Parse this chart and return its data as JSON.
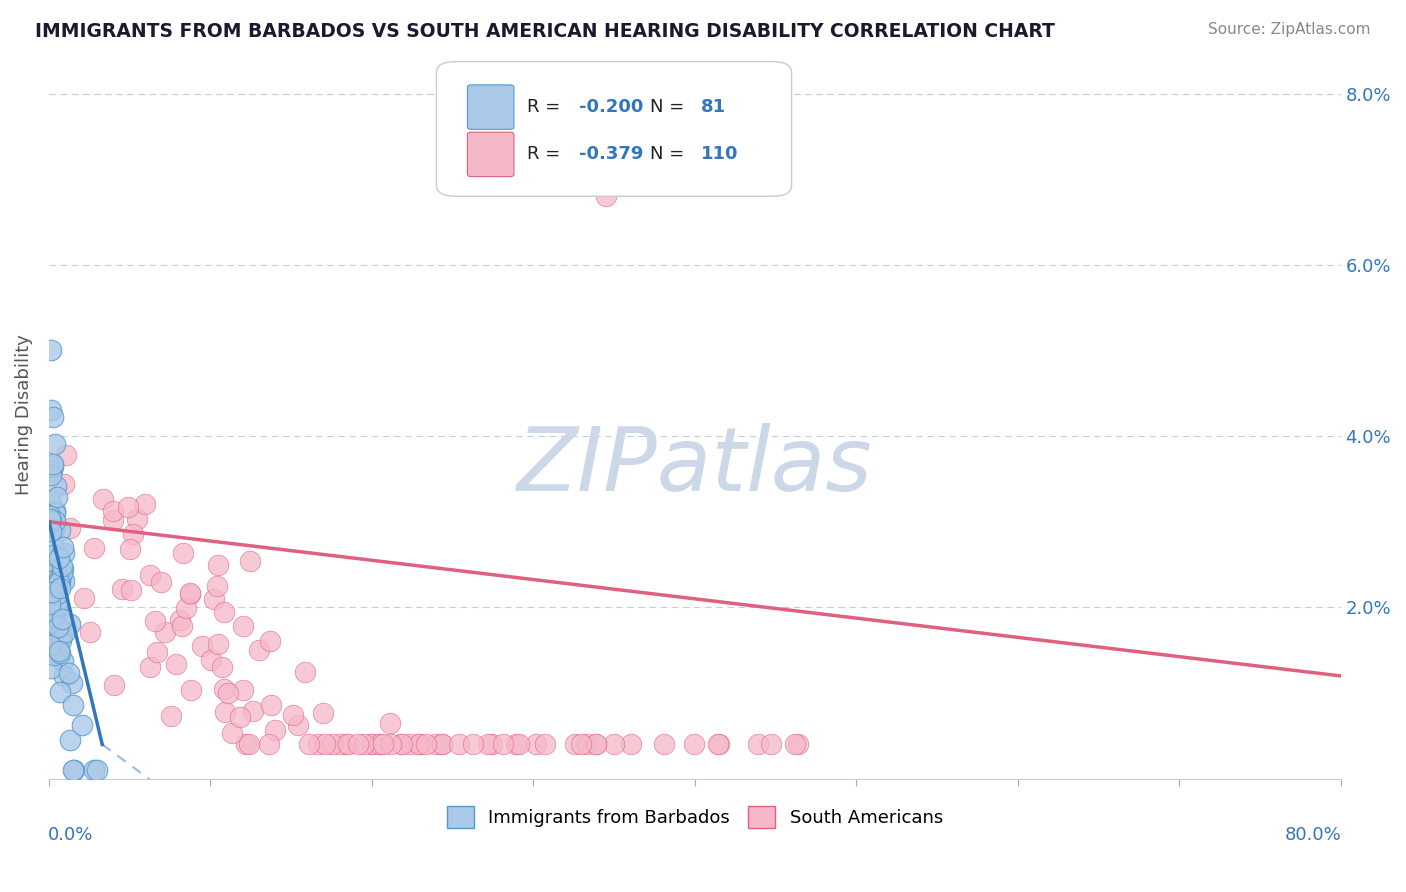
{
  "title": "IMMIGRANTS FROM BARBADOS VS SOUTH AMERICAN HEARING DISABILITY CORRELATION CHART",
  "source": "Source: ZipAtlas.com",
  "ylabel": "Hearing Disability",
  "xmin": 0.0,
  "xmax": 0.8,
  "ymin": 0.0,
  "ymax": 0.085,
  "yticks": [
    0.0,
    0.02,
    0.04,
    0.06,
    0.08
  ],
  "ytick_labels": [
    "",
    "2.0%",
    "4.0%",
    "6.0%",
    "8.0%"
  ],
  "series1": {
    "name": "Immigrants from Barbados",
    "R": -0.2,
    "N": 81,
    "scatter_color": "#aac8e8",
    "edge_color": "#5599cc",
    "line_color": "#3377bb"
  },
  "series2": {
    "name": "South Americans",
    "R": -0.379,
    "N": 110,
    "scatter_color": "#f5b8c8",
    "edge_color": "#e06080",
    "line_color": "#e06080"
  },
  "watermark": "ZIPatlas",
  "watermark_color": "#ccd8e8",
  "background_color": "#ffffff",
  "grid_color": "#c0d0e0",
  "title_color": "#1a1a2e",
  "source_color": "#888888",
  "legend_r_color": "#3377bb",
  "legend_n_color": "#3377bb"
}
